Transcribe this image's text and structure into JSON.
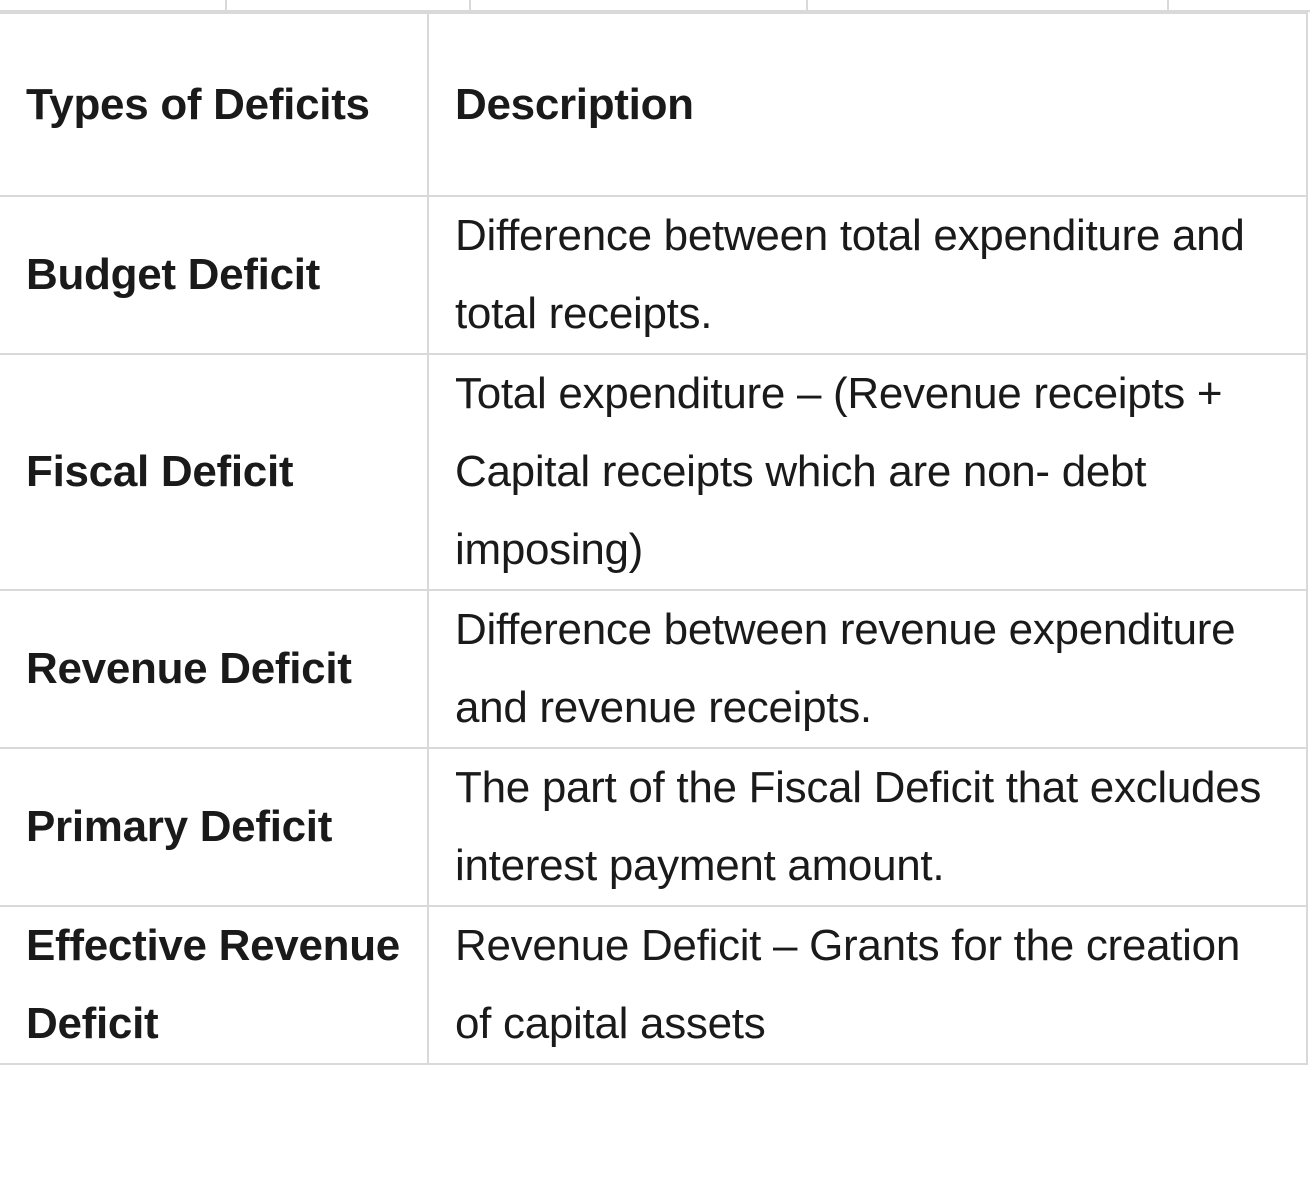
{
  "table": {
    "headers": {
      "type": "Types of Deficits",
      "description": "Description"
    },
    "rows": [
      {
        "type": "Budget Deficit",
        "description": "Difference between total expenditure and total receipts."
      },
      {
        "type": "Fiscal Deficit",
        "description": "Total expenditure – (Revenue receipts + Capital receipts which are non- debt imposing)"
      },
      {
        "type": "Revenue Deficit",
        "description": "Difference between revenue expenditure and revenue receipts."
      },
      {
        "type": "Primary Deficit",
        "description": "The part of the Fiscal Deficit that excludes interest payment amount."
      },
      {
        "type": "Effective Revenue Deficit",
        "description": "Revenue Deficit – Grants for the creation of capital assets"
      }
    ]
  }
}
